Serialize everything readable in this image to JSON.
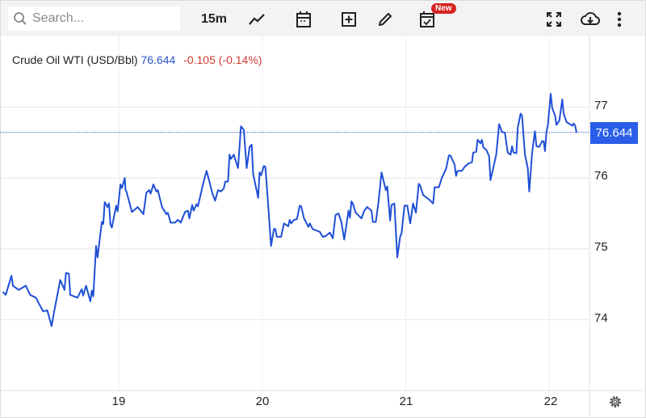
{
  "toolbar": {
    "search_placeholder": "Search...",
    "interval": "15m",
    "icons": [
      "search-icon",
      "line-chart-icon",
      "calendar-icon",
      "add-indicator-icon",
      "pencil-icon",
      "calendar-check-icon",
      "fullscreen-icon",
      "cloud-download-icon",
      "more-vertical-icon"
    ],
    "new_badge": "New"
  },
  "legend": {
    "instrument": "Crude Oil WTI (USD/Bbl)",
    "last_price": "76.644",
    "change": "-0.105 (-0.14%)"
  },
  "colors": {
    "line": "#1f4fd6",
    "last_price_box": "#2a5ee8",
    "change": "#d03a32",
    "price_text": "#2a55c8"
  },
  "chart_data": {
    "type": "line",
    "title": "Crude Oil WTI (USD/Bbl)",
    "xlabel": "",
    "ylabel": "",
    "x_tick_labels": [
      "19",
      "20",
      "21",
      "22"
    ],
    "x_ticks": [
      19,
      20,
      21,
      22
    ],
    "y_tick_labels": [
      "77",
      "76",
      "75",
      "74"
    ],
    "y_ticks": [
      77,
      76,
      75,
      74
    ],
    "xlim": [
      18.17,
      22.28
    ],
    "ylim": [
      73,
      78
    ],
    "grid": true,
    "y_axis_position": "right",
    "last_value_label": "76.644",
    "last_value": 76.644,
    "x": [
      18.19,
      18.21,
      18.25,
      18.26,
      18.3,
      18.35,
      18.38,
      18.42,
      18.47,
      18.5,
      18.53,
      18.55,
      18.59,
      18.62,
      18.63,
      18.65,
      18.66,
      18.71,
      18.74,
      18.75,
      18.77,
      18.8,
      18.81,
      18.82,
      18.84,
      18.85,
      18.88,
      18.89,
      18.9,
      18.92,
      18.93,
      18.94,
      18.95,
      18.98,
      18.99,
      19.01,
      19.02,
      19.04,
      19.045,
      19.05,
      19.09,
      19.13,
      19.17,
      19.19,
      19.21,
      19.22,
      19.24,
      19.26,
      19.27,
      19.3,
      19.33,
      19.34,
      19.36,
      19.39,
      19.41,
      19.43,
      19.46,
      19.48,
      19.49,
      19.51,
      19.52,
      19.54,
      19.55,
      19.59,
      19.61,
      19.63,
      19.65,
      19.67,
      19.69,
      19.71,
      19.73,
      19.74,
      19.76,
      19.77,
      19.78,
      19.8,
      19.83,
      19.85,
      19.87,
      19.89,
      19.91,
      19.925,
      19.935,
      19.97,
      19.98,
      19.99,
      20.01,
      20.02,
      20.03,
      20.06,
      20.08,
      20.09,
      20.1,
      20.13,
      20.15,
      20.18,
      20.19,
      20.2,
      20.22,
      20.24,
      20.26,
      20.27,
      20.29,
      20.32,
      20.33,
      20.35,
      20.4,
      20.42,
      20.44,
      20.47,
      20.49,
      20.51,
      20.53,
      20.55,
      20.57,
      20.6,
      20.61,
      20.62,
      20.63,
      20.65,
      20.69,
      20.71,
      20.73,
      20.76,
      20.77,
      20.79,
      20.81,
      20.83,
      20.86,
      20.87,
      20.89,
      20.9,
      20.92,
      20.94,
      20.96,
      20.97,
      20.99,
      21.01,
      21.03,
      21.05,
      21.07,
      21.09,
      21.1,
      21.12,
      21.16,
      21.19,
      21.2,
      21.23,
      21.25,
      21.28,
      21.3,
      21.31,
      21.34,
      21.35,
      21.36,
      21.39,
      21.41,
      21.44,
      21.46,
      21.47,
      21.49,
      21.5,
      21.52,
      21.53,
      21.54,
      21.56,
      21.58,
      21.59,
      21.62,
      21.63,
      21.65,
      21.67,
      21.69,
      21.71,
      21.73,
      21.74,
      21.75,
      21.77,
      21.78,
      21.8,
      21.81,
      21.83,
      21.85,
      21.86,
      21.88,
      21.9,
      21.91,
      21.93,
      21.95,
      21.96,
      21.97,
      21.98,
      21.99,
      22.01,
      22.02,
      22.04,
      22.05,
      22.07,
      22.09,
      22.1,
      22.12,
      22.16,
      22.17,
      22.18,
      22.19
    ],
    "y": [
      74.39,
      74.35,
      74.62,
      74.48,
      74.42,
      74.48,
      74.35,
      74.31,
      74.12,
      74.13,
      73.91,
      74.14,
      74.56,
      74.42,
      74.66,
      74.65,
      74.35,
      74.31,
      74.43,
      74.34,
      74.48,
      74.26,
      74.41,
      74.33,
      75.04,
      74.88,
      75.38,
      75.35,
      75.66,
      75.59,
      75.64,
      75.34,
      75.3,
      75.61,
      75.53,
      75.91,
      75.86,
      76.0,
      75.83,
      75.82,
      75.52,
      75.59,
      75.49,
      75.79,
      75.83,
      75.78,
      75.91,
      75.81,
      75.83,
      75.59,
      75.49,
      75.51,
      75.37,
      75.37,
      75.41,
      75.37,
      75.52,
      75.54,
      75.43,
      75.62,
      75.54,
      75.63,
      75.6,
      75.95,
      76.1,
      75.95,
      75.79,
      75.68,
      75.83,
      75.81,
      75.85,
      75.95,
      75.95,
      76.33,
      76.27,
      76.33,
      76.14,
      76.73,
      76.68,
      76.14,
      76.44,
      76.47,
      76.06,
      75.72,
      76.08,
      76.04,
      76.17,
      76.16,
      75.89,
      75.04,
      75.28,
      75.28,
      75.17,
      75.17,
      75.36,
      75.32,
      75.41,
      75.36,
      75.41,
      75.42,
      75.61,
      75.6,
      75.43,
      75.31,
      75.36,
      75.28,
      75.24,
      75.17,
      75.18,
      75.23,
      75.15,
      75.48,
      75.5,
      75.38,
      75.13,
      75.54,
      75.44,
      75.67,
      75.64,
      75.51,
      75.43,
      75.54,
      75.59,
      75.54,
      75.38,
      75.38,
      75.68,
      76.08,
      75.83,
      75.88,
      75.4,
      75.62,
      75.64,
      74.88,
      75.17,
      75.22,
      75.61,
      75.61,
      75.36,
      75.64,
      75.51,
      75.92,
      75.89,
      75.76,
      75.7,
      75.64,
      75.87,
      75.87,
      76.0,
      76.13,
      76.32,
      76.32,
      76.19,
      76.03,
      76.1,
      76.1,
      76.16,
      76.21,
      76.22,
      76.36,
      76.37,
      76.54,
      76.49,
      76.54,
      76.43,
      76.4,
      76.31,
      75.97,
      76.24,
      76.33,
      76.76,
      76.65,
      76.64,
      76.36,
      76.33,
      76.45,
      76.36,
      76.35,
      76.71,
      76.91,
      76.88,
      76.33,
      76.14,
      75.81,
      76.36,
      76.66,
      76.45,
      76.44,
      76.52,
      76.52,
      76.38,
      76.65,
      76.75,
      77.19,
      76.99,
      76.88,
      76.75,
      76.81,
      77.11,
      76.91,
      76.79,
      76.74,
      76.77,
      76.74,
      76.644
    ]
  }
}
